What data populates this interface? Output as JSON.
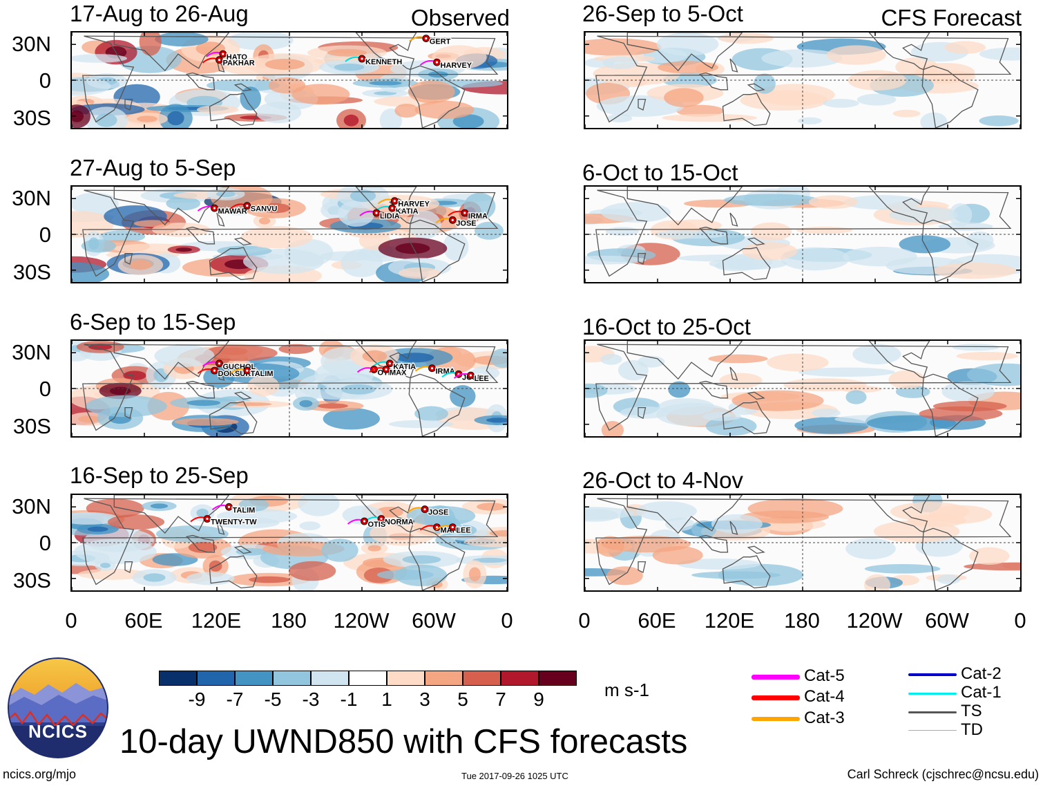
{
  "observed_tag": "Observed",
  "forecast_tag": "CFS Forecast",
  "chart_data": [
    {
      "type": "heatmap",
      "title": "17-Aug to 26-Aug",
      "kind": "observed",
      "storms": [
        {
          "name": "HATO",
          "lon": 125,
          "lat": 22
        },
        {
          "name": "PAKHAR",
          "lon": 122,
          "lat": 17
        },
        {
          "name": "GERT",
          "lon": -67,
          "lat": 35
        },
        {
          "name": "KENNETH",
          "lon": -120,
          "lat": 18
        },
        {
          "name": "HARVEY",
          "lon": -58,
          "lat": 15
        }
      ]
    },
    {
      "type": "heatmap",
      "title": "27-Aug to 5-Sep",
      "kind": "observed",
      "storms": [
        {
          "name": "MAWAR",
          "lon": 118,
          "lat": 22
        },
        {
          "name": "SANVU",
          "lon": 145,
          "lat": 24
        },
        {
          "name": "HARVEY",
          "lon": -93,
          "lat": 28
        },
        {
          "name": "KATIA",
          "lon": -95,
          "lat": 22
        },
        {
          "name": "LIDIA",
          "lon": -108,
          "lat": 18
        },
        {
          "name": "IRMA",
          "lon": -35,
          "lat": 18
        },
        {
          "name": "JOSE",
          "lon": -45,
          "lat": 12
        }
      ]
    },
    {
      "type": "heatmap",
      "title": "6-Sep to 15-Sep",
      "kind": "observed",
      "storms": [
        {
          "name": "GUCHOL",
          "lon": 122,
          "lat": 21
        },
        {
          "name": "DOKSURI",
          "lon": 118,
          "lat": 15
        },
        {
          "name": "TALIM",
          "lon": 145,
          "lat": 15
        },
        {
          "name": "KATIA",
          "lon": -97,
          "lat": 21
        },
        {
          "name": "OTIS",
          "lon": -110,
          "lat": 16
        },
        {
          "name": "MAX",
          "lon": -100,
          "lat": 16
        },
        {
          "name": "IRMA",
          "lon": -62,
          "lat": 17
        },
        {
          "name": "JOSE",
          "lon": -40,
          "lat": 12
        },
        {
          "name": "LEE",
          "lon": -30,
          "lat": 11
        }
      ]
    },
    {
      "type": "heatmap",
      "title": "16-Sep to 25-Sep",
      "kind": "observed",
      "storms": [
        {
          "name": "TALIM",
          "lon": 130,
          "lat": 30
        },
        {
          "name": "TWENTY-TW",
          "lon": 112,
          "lat": 20
        },
        {
          "name": "JOSE",
          "lon": -68,
          "lat": 28
        },
        {
          "name": "NORMA",
          "lon": -104,
          "lat": 20
        },
        {
          "name": "OTIS",
          "lon": -118,
          "lat": 18
        },
        {
          "name": "MARIA",
          "lon": -58,
          "lat": 13
        },
        {
          "name": "LEE",
          "lon": -45,
          "lat": 13
        }
      ]
    },
    {
      "type": "heatmap",
      "title": "26-Sep to 5-Oct",
      "kind": "forecast"
    },
    {
      "type": "heatmap",
      "title": "6-Oct to 15-Oct",
      "kind": "forecast"
    },
    {
      "type": "heatmap",
      "title": "16-Oct to 25-Oct",
      "kind": "forecast"
    },
    {
      "type": "heatmap",
      "title": "26-Oct to 4-Nov",
      "kind": "forecast"
    }
  ],
  "lat_ticks": [
    "30N",
    "0",
    "30S"
  ],
  "lon_ticks": [
    "0",
    "60E",
    "120E",
    "180",
    "120W",
    "60W",
    "0"
  ],
  "colorbar": {
    "levels": [
      "-9",
      "-7",
      "-5",
      "-3",
      "-1",
      "1",
      "3",
      "5",
      "7",
      "9"
    ],
    "colors": [
      "#08306b",
      "#2166ac",
      "#4393c3",
      "#92c5de",
      "#d1e5f0",
      "#ffffff",
      "#fddbc7",
      "#f4a582",
      "#d6604d",
      "#b2182b",
      "#67001f"
    ],
    "units": "m s-1"
  },
  "legend": [
    {
      "label": "Cat-5",
      "color": "#ff00ff",
      "width": 7
    },
    {
      "label": "Cat-4",
      "color": "#ff0000",
      "width": 7
    },
    {
      "label": "Cat-3",
      "color": "#ffa500",
      "width": 6
    },
    {
      "label": "Cat-2",
      "color": "#0000cc",
      "width": 4
    },
    {
      "label": "Cat-1",
      "color": "#00eeee",
      "width": 3
    },
    {
      "label": "TS",
      "color": "#555555",
      "width": 3
    },
    {
      "label": "TD",
      "color": "#aaaaaa",
      "width": 1.5
    }
  ],
  "logo_text": "NCICS",
  "main_title": "10-day UWND850 with CFS forecasts",
  "footer": {
    "left": "ncics.org/mjo",
    "center": "Tue 2017-09-26 1025 UTC",
    "right": "Carl Schreck (cjschrec@ncsu.edu)"
  }
}
